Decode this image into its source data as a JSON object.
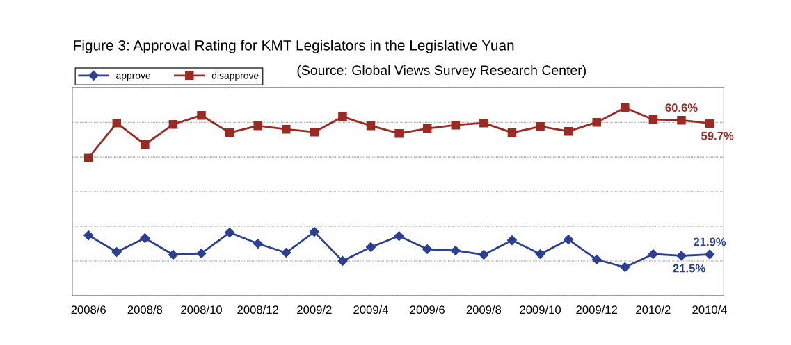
{
  "chart_data": {
    "type": "line",
    "title": "Figure 3: Approval Rating for KMT Legislators in the Legislative Yuan",
    "annotations": [
      "(Source: Global Views Survey Research Center)"
    ],
    "categories": [
      "2008/6",
      null,
      "2008/8",
      null,
      "2008/10",
      null,
      "2008/12",
      null,
      "2009/2",
      null,
      "2009/4",
      null,
      "2009/6",
      null,
      "2009/8",
      null,
      "2009/10",
      null,
      "2009/12",
      null,
      "2010/2",
      null,
      "2010/4"
    ],
    "series": [
      {
        "name": "approve",
        "color": "#2b3f94",
        "marker": "diamond",
        "values": [
          27.4,
          22.6,
          26.6,
          21.8,
          22.2,
          28.2,
          25.0,
          22.4,
          28.4,
          20.0,
          24.0,
          27.2,
          23.4,
          23.0,
          21.8,
          26.0,
          22.0,
          26.2,
          20.4,
          18.2,
          22.0,
          21.5,
          21.9
        ],
        "value_labels": [
          null,
          null,
          null,
          null,
          null,
          null,
          null,
          null,
          null,
          null,
          null,
          null,
          null,
          null,
          null,
          null,
          null,
          null,
          null,
          null,
          null,
          "21.5%",
          "21.9%"
        ]
      },
      {
        "name": "disapprove",
        "color": "#9b2a22",
        "marker": "square",
        "values": [
          49.7,
          59.8,
          53.6,
          59.4,
          62.0,
          57.0,
          59.0,
          58.0,
          57.2,
          61.6,
          59.0,
          56.8,
          58.2,
          59.2,
          59.8,
          57.0,
          58.8,
          57.4,
          60.0,
          64.2,
          60.8,
          60.6,
          59.7
        ],
        "value_labels": [
          null,
          null,
          null,
          null,
          null,
          null,
          null,
          null,
          null,
          null,
          null,
          null,
          null,
          null,
          null,
          null,
          null,
          null,
          null,
          null,
          null,
          "60.6%",
          "59.7%"
        ]
      }
    ],
    "ylim": [
      10,
      70
    ],
    "yticks": [
      {
        "value": 10,
        "label": null
      },
      {
        "value": 20,
        "label": null
      },
      {
        "value": 30,
        "label": null
      },
      {
        "value": 40,
        "label": null
      },
      {
        "value": 50,
        "label": null
      },
      {
        "value": 60,
        "label": null
      },
      {
        "value": 70,
        "label": null
      }
    ],
    "tick_labels": "x",
    "grid": "y",
    "legend": "top left",
    "line_style": "solid"
  }
}
